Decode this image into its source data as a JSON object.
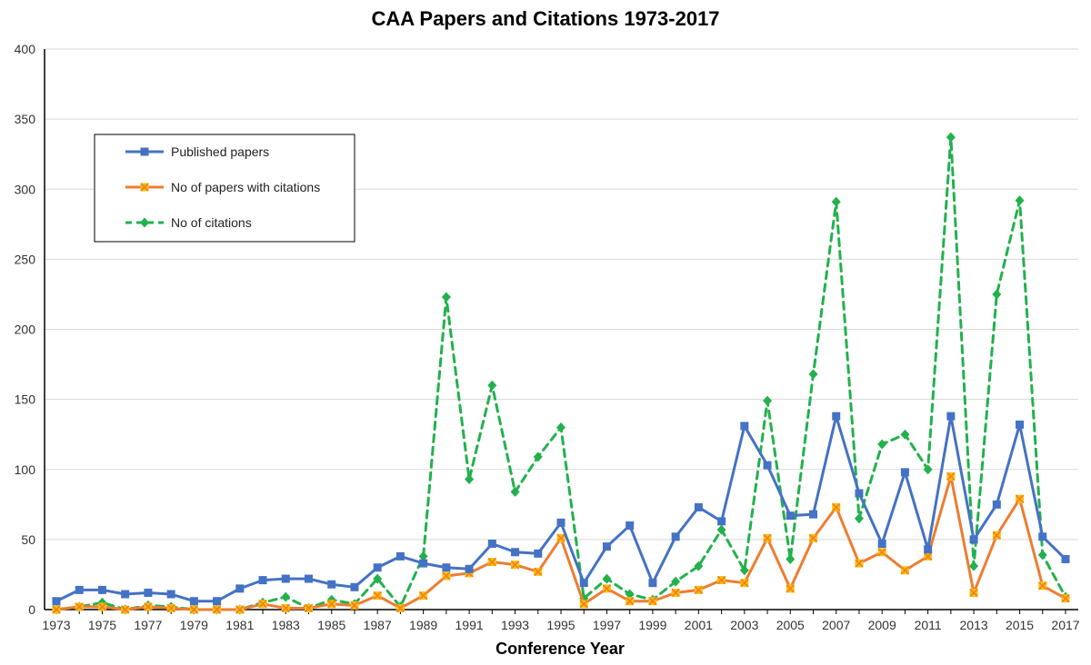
{
  "chart_data": {
    "type": "line",
    "title": "CAA Papers and Citations 1973-2017",
    "xlabel": "Conference Year",
    "ylabel": "",
    "ylim": [
      0,
      400
    ],
    "yticks": [
      0,
      50,
      100,
      150,
      200,
      250,
      300,
      350,
      400
    ],
    "x": [
      1973,
      1974,
      1975,
      1976,
      1977,
      1978,
      1979,
      1980,
      1981,
      1982,
      1983,
      1984,
      1985,
      1986,
      1987,
      1988,
      1989,
      1990,
      1991,
      1992,
      1993,
      1994,
      1995,
      1996,
      1997,
      1998,
      1999,
      2000,
      2001,
      2002,
      2003,
      2004,
      2005,
      2006,
      2007,
      2008,
      2009,
      2010,
      2011,
      2012,
      2013,
      2014,
      2015,
      2016,
      2017
    ],
    "xtick_labels": [
      "1973",
      "1975",
      "1977",
      "1979",
      "1981",
      "1983",
      "1985",
      "1987",
      "1989",
      "1991",
      "1993",
      "1995",
      "1997",
      "1999",
      "2001",
      "2003",
      "2005",
      "2007",
      "2009",
      "2011",
      "2013",
      "2015",
      "2017"
    ],
    "grid": "horizontal",
    "legend_position": "upper-left",
    "series": [
      {
        "name": "Published papers",
        "color": "#4472C4",
        "marker": "square",
        "dash": "solid",
        "values": [
          6,
          14,
          14,
          11,
          12,
          11,
          6,
          6,
          15,
          21,
          22,
          22,
          18,
          16,
          30,
          38,
          33,
          30,
          29,
          47,
          41,
          40,
          62,
          19,
          45,
          60,
          19,
          52,
          73,
          63,
          131,
          103,
          67,
          68,
          138,
          83,
          47,
          98,
          43,
          138,
          50,
          75,
          132,
          52,
          36
        ]
      },
      {
        "name": "No of papers with citations",
        "color": "#ED7D31",
        "marker": "x",
        "dash": "solid",
        "values": [
          0,
          2,
          2,
          0,
          2,
          1,
          0,
          0,
          0,
          4,
          1,
          1,
          4,
          3,
          10,
          1,
          10,
          24,
          26,
          34,
          32,
          27,
          51,
          4,
          15,
          6,
          6,
          12,
          14,
          21,
          19,
          51,
          15,
          51,
          73,
          33,
          41,
          28,
          38,
          95,
          12,
          53,
          79,
          17,
          8
        ]
      },
      {
        "name": "No of citations",
        "color": "#22B14C",
        "marker": "diamond",
        "dash": "dashed",
        "values": [
          0,
          2,
          5,
          0,
          3,
          2,
          0,
          0,
          0,
          5,
          9,
          1,
          7,
          4,
          22,
          2,
          38,
          223,
          93,
          160,
          84,
          109,
          130,
          8,
          22,
          11,
          7,
          20,
          31,
          57,
          28,
          149,
          36,
          168,
          291,
          65,
          118,
          125,
          100,
          337,
          31,
          225,
          292,
          39,
          9
        ]
      }
    ]
  }
}
